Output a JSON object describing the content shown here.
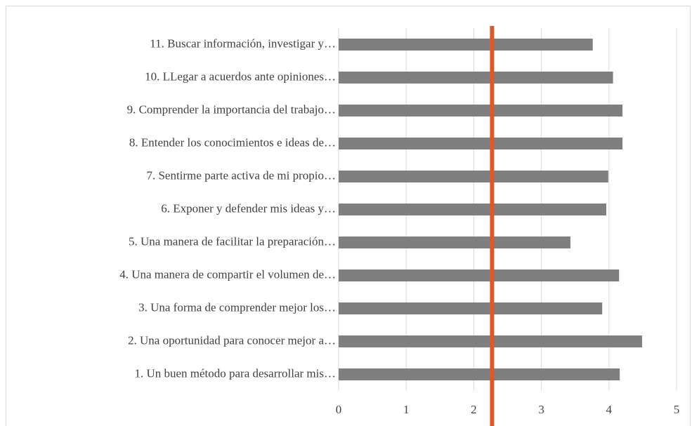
{
  "chart_data": {
    "type": "barh",
    "categories": [
      "1. Un buen método para desarrollar mis…",
      "2. Una oportunidad para conocer mejor a…",
      "3. Una forma de comprender mejor los…",
      "4. Una manera de compartir el volumen de…",
      "5. Una manera de facilitar la preparación…",
      "6. Exponer y defender mis ideas y…",
      "7. Sentirme parte activa de mi propio…",
      "8. Entender los conocimientos e ideas de…",
      "9. Comprender la importancia del trabajo…",
      "10. LLegar a acuerdos ante opiniones…",
      "11. Buscar información, investigar y…"
    ],
    "values": [
      4.16,
      4.49,
      3.9,
      4.15,
      3.43,
      3.96,
      3.99,
      4.2,
      4.2,
      4.06,
      3.76
    ],
    "color": "#7f7f7f",
    "xlim": [
      0,
      5
    ],
    "xticks": [
      0,
      1,
      2,
      3,
      4,
      5
    ],
    "grid": true,
    "reference_line": {
      "value": 2.27,
      "color": "#dd5a28"
    }
  }
}
